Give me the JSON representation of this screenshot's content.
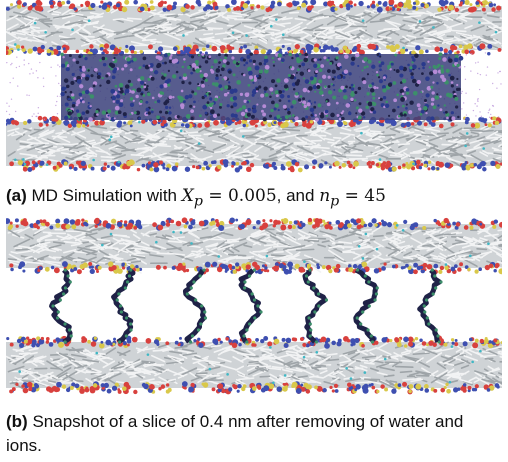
{
  "figure": {
    "panels": [
      {
        "label": "(a)",
        "caption_prefix": "MD Simulation with",
        "math_var1": "X",
        "math_sub1": "p",
        "math_val1": "0.005",
        "caption_join": ", and",
        "math_var2": "n",
        "math_sub2": "p",
        "math_val2": "45"
      },
      {
        "label": "(b)",
        "caption_text": "Snapshot of a slice of 0.4 nm after removing of water and",
        "caption_text_2": "ions."
      }
    ],
    "colors": {
      "lipid_tail": "#cfd3d6",
      "lipid_tail_dark": "#9ea4a8",
      "head_red": "#d8413e",
      "head_blue": "#3e4fb0",
      "head_yellow": "#d9c84a",
      "head_cyan": "#3fb7c4",
      "polymer_dark": "#1f2247",
      "polymer_green": "#3c8f6a",
      "water_purple": "#b58bd6"
    }
  }
}
